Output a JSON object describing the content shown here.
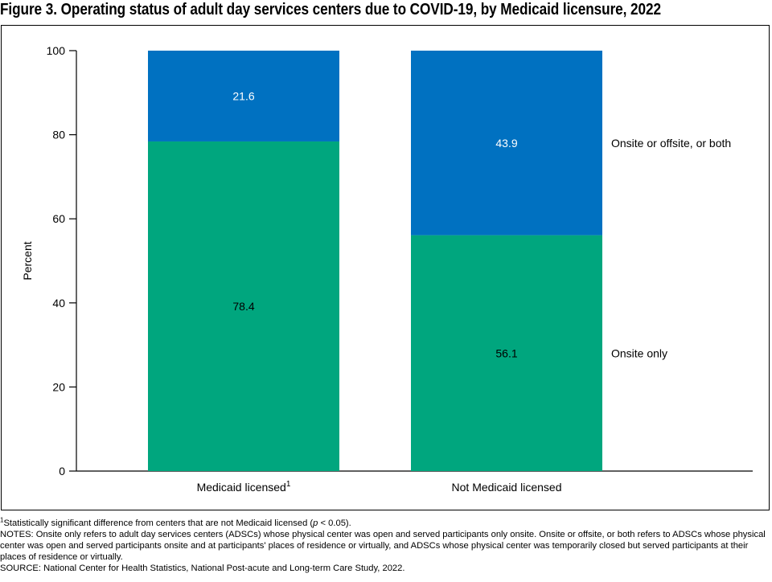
{
  "title": "Figure 3. Operating status of adult day services centers due to COVID-19, by Medicaid licensure, 2022",
  "chart_data": {
    "type": "bar",
    "stacked": true,
    "categories": [
      "Medicaid licensed",
      "Not Medicaid licensed"
    ],
    "category_superscripts": [
      "1",
      ""
    ],
    "series": [
      {
        "name": "Onsite only",
        "values": [
          78.4,
          56.1
        ],
        "labels": [
          "78.4",
          "56.1"
        ],
        "color": "#00a67e",
        "label_color": "#000000"
      },
      {
        "name": "Onsite or offsite, or both",
        "values": [
          21.6,
          43.9
        ],
        "labels": [
          "21.6",
          "43.9"
        ],
        "color": "#0071c1",
        "label_color": "#ffffff"
      }
    ],
    "ylabel": "Percent",
    "xlabel": "",
    "ylim": [
      0,
      100
    ],
    "yticks": [
      0,
      20,
      40,
      60,
      80,
      100
    ],
    "legend": "right, direct labels beside bars",
    "grid": false
  },
  "notes": {
    "footnote_marker": "1",
    "footnote_text": "Statistically significant difference from centers that are not Medicaid licensed (",
    "footnote_p": "p",
    "footnote_end": " < 0.05).",
    "notes_text": "NOTES: Onsite only refers to adult day services centers (ADSCs) whose physical center was open and served participants only onsite. Onsite or offsite, or both refers to ADSCs whose physical center was open and served participants onsite and at participants' places of residence or virtually, and ADSCs whose physical center was temporarily closed but served participants at their places of residence or virtually.",
    "source_text": "SOURCE: National Center for Health Statistics, National Post-acute and Long-term Care Study, 2022."
  }
}
